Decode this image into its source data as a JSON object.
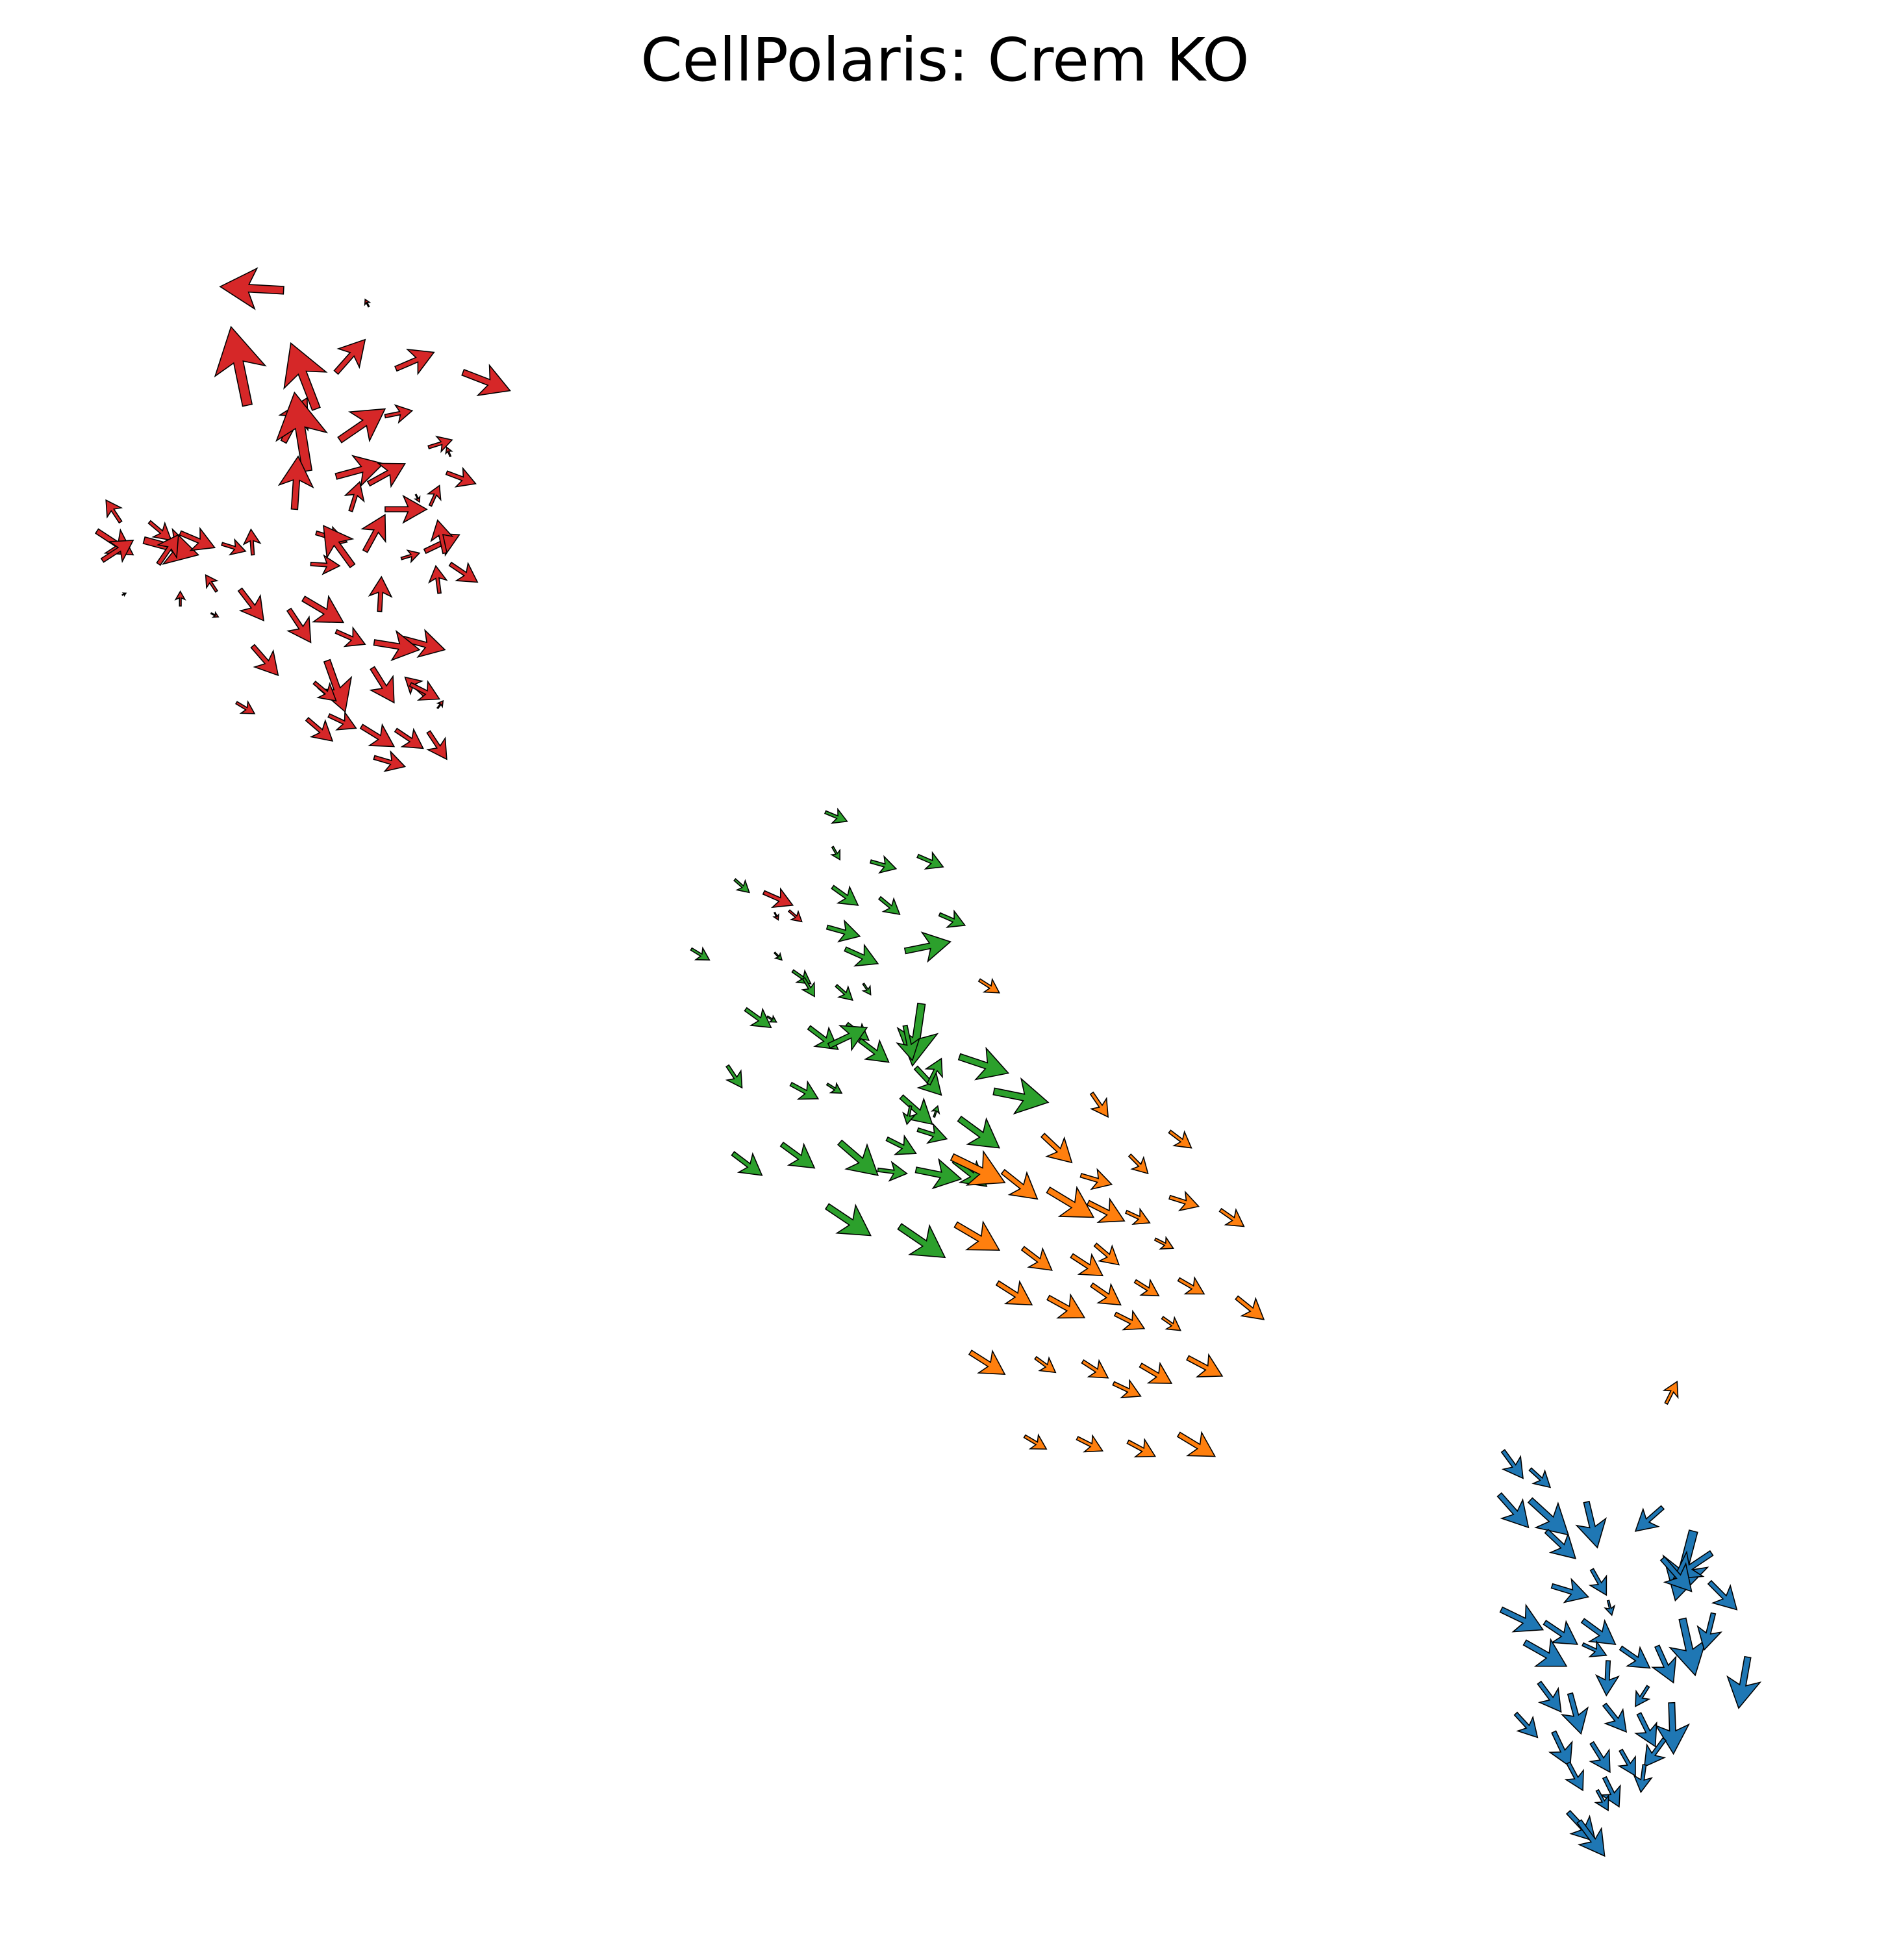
{
  "chart_data": {
    "type": "quiver",
    "title": "CellPolaris: Crem KO",
    "axes_visible": false,
    "xlim": [
      0,
      100
    ],
    "ylim": [
      0,
      100
    ],
    "edge_color": "#000000",
    "series": [
      {
        "color": "#d62728",
        "arrows": [
          [
            13.5,
            90.5,
            -3.5,
            0.2
          ],
          [
            18.2,
            89.6,
            -0.2,
            0.4
          ],
          [
            11.5,
            84.2,
            -0.9,
            4.3
          ],
          [
            15.3,
            84.0,
            -1.4,
            3.6
          ],
          [
            19.7,
            86.2,
            2.1,
            0.9
          ],
          [
            23.4,
            86.0,
            2.6,
            -1.0
          ],
          [
            16.4,
            86.0,
            1.6,
            1.8
          ],
          [
            13.5,
            82.2,
            1.3,
            2.4
          ],
          [
            14.8,
            80.6,
            -0.7,
            4.3
          ],
          [
            16.6,
            82.3,
            2.5,
            1.7
          ],
          [
            19.1,
            83.6,
            1.5,
            0.3
          ],
          [
            16.4,
            80.3,
            2.6,
            0.7
          ],
          [
            18.2,
            79.9,
            2.0,
            1.1
          ],
          [
            21.5,
            81.9,
            1.3,
            0.4
          ],
          [
            22.5,
            80.5,
            1.6,
            -0.6
          ],
          [
            22.7,
            81.4,
            -0.2,
            0.5
          ],
          [
            14.1,
            78.5,
            0.2,
            2.9
          ],
          [
            17.2,
            78.4,
            0.5,
            1.6
          ],
          [
            19.1,
            78.5,
            2.3,
            0.0
          ],
          [
            20.8,
            79.3,
            0.2,
            -0.4
          ],
          [
            21.6,
            78.7,
            0.5,
            1.1
          ],
          [
            15.3,
            77.2,
            1.7,
            -0.5
          ],
          [
            18.0,
            76.2,
            1.1,
            2.0
          ],
          [
            21.3,
            76.2,
            1.9,
            0.9
          ],
          [
            22.4,
            76.1,
            -0.4,
            1.8
          ],
          [
            3.2,
            77.3,
            2.0,
            -1.3
          ],
          [
            4.5,
            77.8,
            -0.8,
            1.2
          ],
          [
            6.1,
            77.8,
            1.2,
            -1.0
          ],
          [
            5.8,
            76.8,
            3.0,
            -0.8
          ],
          [
            7.8,
            77.2,
            1.9,
            -0.8
          ],
          [
            3.5,
            75.7,
            1.7,
            1.1
          ],
          [
            6.6,
            75.5,
            1.1,
            1.6
          ],
          [
            10.1,
            76.6,
            1.3,
            -0.4
          ],
          [
            11.8,
            76.0,
            -0.1,
            1.4
          ],
          [
            15.0,
            75.5,
            1.6,
            -0.1
          ],
          [
            17.3,
            75.4,
            -1.6,
            2.2
          ],
          [
            20.0,
            75.8,
            1.0,
            0.3
          ],
          [
            22.7,
            75.5,
            1.5,
            -1.0
          ],
          [
            22.1,
            73.9,
            -0.2,
            1.5
          ],
          [
            14.6,
            73.6,
            2.2,
            -1.3
          ],
          [
            18.8,
            72.9,
            0.1,
            1.9
          ],
          [
            16.4,
            71.8,
            1.6,
            -0.7
          ],
          [
            13.8,
            73.0,
            1.2,
            -1.8
          ],
          [
            11.1,
            74.1,
            1.3,
            -1.7
          ],
          [
            9.8,
            74.0,
            -0.6,
            0.9
          ],
          [
            9.5,
            72.8,
            0.4,
            -0.2
          ],
          [
            7.8,
            73.2,
            0.0,
            0.8
          ],
          [
            11.8,
            71.0,
            1.4,
            -1.6
          ],
          [
            20.1,
            71.4,
            2.3,
            -0.6
          ],
          [
            18.5,
            71.2,
            2.5,
            -0.4
          ],
          [
            15.9,
            70.2,
            1.0,
            -2.8
          ],
          [
            18.4,
            69.8,
            1.2,
            -1.9
          ],
          [
            21.3,
            68.3,
            -1.1,
            1.0
          ],
          [
            10.9,
            67.9,
            1.0,
            -0.6
          ],
          [
            14.8,
            67.0,
            1.4,
            -1.2
          ],
          [
            16.0,
            67.2,
            1.5,
            -0.7
          ],
          [
            15.2,
            69.0,
            1.2,
            -1.0
          ],
          [
            19.7,
            66.4,
            1.5,
            -1.0
          ],
          [
            17.8,
            66.6,
            1.8,
            -1.1
          ],
          [
            18.5,
            64.9,
            1.7,
            -0.5
          ],
          [
            21.5,
            66.3,
            1.0,
            -1.5
          ],
          [
            20.5,
            68.9,
            1.6,
            -0.8
          ],
          [
            22.0,
            67.6,
            0.3,
            0.4
          ],
          [
            4.6,
            73.8,
            0.2,
            0.1
          ],
          [
            40.0,
            57.5,
            1.6,
            -0.7
          ],
          [
            40.6,
            56.4,
            0.2,
            -0.4
          ],
          [
            41.4,
            56.5,
            0.7,
            -0.6
          ]
        ]
      },
      {
        "color": "#2ca02c",
        "arrows": [
          [
            43.4,
            61.9,
            1.2,
            -0.5
          ],
          [
            43.8,
            60.0,
            0.4,
            -0.7
          ],
          [
            45.9,
            59.2,
            1.4,
            -0.4
          ],
          [
            48.5,
            59.5,
            1.4,
            -0.6
          ],
          [
            38.4,
            58.2,
            0.8,
            -0.7
          ],
          [
            43.8,
            57.8,
            1.4,
            -1.0
          ],
          [
            46.4,
            57.2,
            1.1,
            -0.9
          ],
          [
            49.7,
            56.3,
            1.4,
            -0.6
          ],
          [
            43.5,
            55.6,
            1.8,
            -0.5
          ],
          [
            36.0,
            54.4,
            1.0,
            -0.6
          ],
          [
            40.6,
            54.2,
            0.4,
            -0.4
          ],
          [
            44.5,
            54.4,
            1.8,
            -0.8
          ],
          [
            47.8,
            54.3,
            2.5,
            0.5
          ],
          [
            41.6,
            53.2,
            1.0,
            -0.7
          ],
          [
            42.2,
            52.8,
            0.6,
            -1.0
          ],
          [
            44.0,
            52.4,
            0.9,
            -0.8
          ],
          [
            45.5,
            52.5,
            0.4,
            -0.6
          ],
          [
            48.7,
            51.4,
            -0.5,
            -3.4
          ],
          [
            39.0,
            51.1,
            1.4,
            -1.0
          ],
          [
            40.2,
            50.7,
            0.5,
            -0.3
          ],
          [
            42.5,
            50.1,
            1.6,
            -1.2
          ],
          [
            44.6,
            50.3,
            1.2,
            -0.9
          ],
          [
            43.6,
            49.1,
            2.1,
            1.0
          ],
          [
            45.3,
            49.4,
            1.6,
            -1.2
          ],
          [
            47.8,
            50.2,
            0.4,
            -1.9
          ],
          [
            50.8,
            48.5,
            2.7,
            -0.9
          ],
          [
            48.4,
            47.9,
            1.4,
            -1.5
          ],
          [
            49.1,
            47.0,
            0.7,
            1.4
          ],
          [
            38.0,
            48.0,
            0.8,
            -1.2
          ],
          [
            41.5,
            47.0,
            1.5,
            -0.8
          ],
          [
            43.5,
            47.0,
            0.8,
            -0.5
          ],
          [
            47.6,
            46.3,
            1.7,
            -1.5
          ],
          [
            52.7,
            46.6,
            3.0,
            -0.6
          ],
          [
            48.1,
            45.8,
            -0.2,
            -1.0
          ],
          [
            49.4,
            45.2,
            0.2,
            0.6
          ],
          [
            48.5,
            44.5,
            1.6,
            -0.5
          ],
          [
            46.8,
            44.0,
            1.6,
            -0.8
          ],
          [
            50.8,
            45.1,
            2.2,
            -1.6
          ],
          [
            38.3,
            43.2,
            1.6,
            -1.2
          ],
          [
            41.0,
            43.7,
            1.8,
            -1.3
          ],
          [
            44.2,
            43.8,
            2.1,
            -1.8
          ],
          [
            46.3,
            42.3,
            1.6,
            -0.2
          ],
          [
            48.4,
            42.3,
            2.5,
            -0.5
          ],
          [
            50.5,
            42.8,
            1.8,
            -1.4
          ],
          [
            43.5,
            40.3,
            2.4,
            -1.6
          ],
          [
            47.5,
            39.2,
            2.5,
            -1.7
          ]
        ]
      },
      {
        "color": "#ff7f0e",
        "arrows": [
          [
            51.9,
            52.7,
            1.1,
            -0.7
          ],
          [
            58.1,
            46.5,
            0.9,
            -1.3
          ],
          [
            62.4,
            44.4,
            1.2,
            -0.9
          ],
          [
            55.4,
            44.2,
            1.6,
            -1.5
          ],
          [
            60.2,
            43.1,
            1.0,
            -1.0
          ],
          [
            50.4,
            43.0,
            2.9,
            -1.4
          ],
          [
            53.2,
            42.2,
            1.9,
            -1.5
          ],
          [
            55.7,
            41.2,
            2.5,
            -1.5
          ],
          [
            57.5,
            42.0,
            1.7,
            -0.5
          ],
          [
            57.9,
            40.5,
            2.0,
            -1.0
          ],
          [
            60.0,
            40.0,
            1.3,
            -0.6
          ],
          [
            62.4,
            40.8,
            1.6,
            -0.5
          ],
          [
            65.2,
            40.1,
            1.3,
            -0.9
          ],
          [
            50.6,
            39.3,
            2.4,
            -1.4
          ],
          [
            54.3,
            38.0,
            1.6,
            -1.2
          ],
          [
            57.0,
            37.6,
            1.7,
            -1.1
          ],
          [
            58.3,
            38.2,
            1.3,
            -1.1
          ],
          [
            61.6,
            38.5,
            1.0,
            -0.5
          ],
          [
            52.9,
            36.1,
            1.9,
            -1.2
          ],
          [
            55.7,
            35.3,
            2.0,
            -1.1
          ],
          [
            58.1,
            36.0,
            1.6,
            -1.1
          ],
          [
            60.5,
            36.2,
            1.3,
            -0.8
          ],
          [
            62.9,
            36.3,
            1.4,
            -0.8
          ],
          [
            66.1,
            35.3,
            1.5,
            -1.2
          ],
          [
            59.4,
            34.4,
            1.6,
            -0.8
          ],
          [
            62.0,
            34.2,
            1.0,
            -0.7
          ],
          [
            51.4,
            32.3,
            1.9,
            -1.2
          ],
          [
            55.0,
            32.0,
            1.1,
            -0.8
          ],
          [
            57.6,
            31.8,
            1.4,
            -0.9
          ],
          [
            60.8,
            31.6,
            1.7,
            -1.0
          ],
          [
            63.4,
            32.0,
            1.9,
            -1.0
          ],
          [
            59.3,
            30.6,
            1.5,
            -0.7
          ],
          [
            54.4,
            27.7,
            1.2,
            -0.7
          ],
          [
            57.3,
            27.6,
            1.4,
            -0.7
          ],
          [
            60.1,
            27.4,
            1.5,
            -0.8
          ],
          [
            62.9,
            27.8,
            2.0,
            -1.2
          ],
          [
            89.8,
            29.5,
            0.6,
            1.2
          ]
        ]
      },
      {
        "color": "#1f77b4",
        "arrows": [
          [
            80.8,
            26.9,
            1.1,
            -1.5
          ],
          [
            82.3,
            25.9,
            1.1,
            -1.0
          ],
          [
            80.6,
            24.5,
            1.6,
            -1.8
          ],
          [
            82.3,
            24.2,
            2.1,
            -1.9
          ],
          [
            83.2,
            22.5,
            1.6,
            -1.5
          ],
          [
            85.4,
            24.1,
            0.6,
            -2.5
          ],
          [
            89.6,
            23.8,
            -1.5,
            -1.3
          ],
          [
            91.3,
            22.5,
            -1.0,
            -3.8
          ],
          [
            92.3,
            21.3,
            -2.1,
            -1.4
          ],
          [
            89.6,
            21.0,
            1.6,
            -1.8
          ],
          [
            92.2,
            19.7,
            1.5,
            -1.5
          ],
          [
            85.7,
            20.4,
            0.8,
            -1.4
          ],
          [
            83.5,
            19.5,
            2.0,
            -0.6
          ],
          [
            86.6,
            18.7,
            0.2,
            -0.8
          ],
          [
            85.2,
            17.6,
            1.8,
            -1.3
          ],
          [
            83.1,
            17.5,
            1.8,
            -1.2
          ],
          [
            80.7,
            18.2,
            2.3,
            -1.1
          ],
          [
            82.0,
            16.4,
            2.3,
            -1.3
          ],
          [
            85.2,
            16.3,
            1.3,
            -0.6
          ],
          [
            87.3,
            16.1,
            1.6,
            -1.1
          ],
          [
            89.3,
            16.2,
            0.9,
            -2.0
          ],
          [
            90.7,
            17.7,
            0.7,
            -3.1
          ],
          [
            92.4,
            18.0,
            -0.5,
            -2.0
          ],
          [
            86.6,
            15.4,
            -0.1,
            -1.9
          ],
          [
            88.8,
            14.0,
            -0.7,
            -1.1
          ],
          [
            82.8,
            14.2,
            1.2,
            -1.6
          ],
          [
            84.5,
            13.6,
            0.6,
            -2.2
          ],
          [
            86.4,
            13.0,
            1.2,
            -1.5
          ],
          [
            88.3,
            12.5,
            0.9,
            -1.8
          ],
          [
            90.1,
            13.1,
            0.1,
            -2.8
          ],
          [
            94.3,
            15.6,
            -0.5,
            -2.8
          ],
          [
            89.7,
            11.1,
            -1.1,
            -1.5
          ],
          [
            81.5,
            12.5,
            1.2,
            -1.3
          ],
          [
            83.6,
            11.5,
            0.9,
            -1.9
          ],
          [
            85.7,
            10.9,
            1.0,
            -1.6
          ],
          [
            87.3,
            10.5,
            0.8,
            -1.4
          ],
          [
            88.6,
            9.7,
            -0.2,
            -1.5
          ],
          [
            84.4,
            9.8,
            0.8,
            -1.5
          ],
          [
            86.4,
            9.0,
            0.8,
            -1.6
          ],
          [
            84.4,
            7.1,
            1.5,
            -1.6
          ],
          [
            86.0,
            8.3,
            0.6,
            -1.1
          ],
          [
            85.0,
            6.6,
            1.4,
            -1.9
          ]
        ]
      }
    ]
  }
}
